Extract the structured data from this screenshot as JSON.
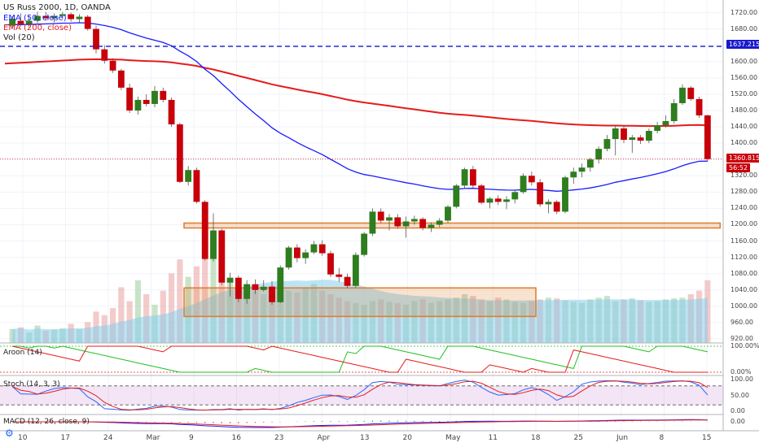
{
  "header": {
    "title": "US Russ 2000, 1D, OANDA",
    "ema50": "EMA (50, close)",
    "ema200": "EMA (200, close)",
    "volume": "Vol (20)"
  },
  "panes": {
    "aroon": "Aroon (14)",
    "stoch": "Stoch (14, 3, 3)",
    "macd": "MACD (12, 26, close, 9)"
  },
  "price_axis": [
    "1720.00",
    "1680.00",
    "1640.00",
    "1600.00",
    "1560.00",
    "1520.00",
    "1480.00",
    "1440.00",
    "1400.00",
    "1360.00",
    "1320.00",
    "1280.00",
    "1240.00",
    "1200.00",
    "1160.00",
    "1120.00",
    "1080.00",
    "1040.00",
    "1000.00",
    "960.00",
    "920.00"
  ],
  "aroon_axis": [
    "100.00%",
    "0.00%"
  ],
  "stoch_axis": [
    "100.00",
    "50.00",
    "0.00"
  ],
  "macd_axis": [
    "0.00"
  ],
  "time_axis": [
    "10",
    "17",
    "24",
    "Mar",
    "9",
    "16",
    "23",
    "Apr",
    "13",
    "20",
    "May",
    "11",
    "18",
    "25",
    "Jun",
    "8",
    "15"
  ],
  "tags": {
    "level": "1637.215",
    "last_price": "1360.815",
    "countdown": "56:52"
  },
  "colors": {
    "up": "#2e7d1e",
    "down": "#c8000a",
    "ema50": "#1a1aff",
    "ema200": "#e51c1c",
    "volume_area": "#87ceeb",
    "zone": "#e07b2a",
    "dash_level": "#1a1acc"
  },
  "chart_data": {
    "type": "candlestick",
    "title": "US Russ 2000, 1D, OANDA",
    "ylim": [
      910,
      1735
    ],
    "candles": [
      {
        "o": 1688,
        "h": 1712,
        "l": 1680,
        "c": 1705
      },
      {
        "o": 1700,
        "h": 1718,
        "l": 1686,
        "c": 1692
      },
      {
        "o": 1692,
        "h": 1710,
        "l": 1684,
        "c": 1700
      },
      {
        "o": 1700,
        "h": 1722,
        "l": 1694,
        "c": 1712
      },
      {
        "o": 1712,
        "h": 1722,
        "l": 1700,
        "c": 1706
      },
      {
        "o": 1706,
        "h": 1718,
        "l": 1696,
        "c": 1712
      },
      {
        "o": 1712,
        "h": 1722,
        "l": 1704,
        "c": 1716
      },
      {
        "o": 1716,
        "h": 1720,
        "l": 1698,
        "c": 1704
      },
      {
        "o": 1704,
        "h": 1716,
        "l": 1696,
        "c": 1710
      },
      {
        "o": 1710,
        "h": 1714,
        "l": 1676,
        "c": 1680
      },
      {
        "o": 1680,
        "h": 1688,
        "l": 1620,
        "c": 1630
      },
      {
        "o": 1630,
        "h": 1640,
        "l": 1595,
        "c": 1602
      },
      {
        "o": 1602,
        "h": 1608,
        "l": 1572,
        "c": 1578
      },
      {
        "o": 1578,
        "h": 1582,
        "l": 1530,
        "c": 1536
      },
      {
        "o": 1536,
        "h": 1546,
        "l": 1474,
        "c": 1480
      },
      {
        "o": 1480,
        "h": 1514,
        "l": 1470,
        "c": 1506
      },
      {
        "o": 1506,
        "h": 1520,
        "l": 1490,
        "c": 1496
      },
      {
        "o": 1496,
        "h": 1540,
        "l": 1488,
        "c": 1528
      },
      {
        "o": 1528,
        "h": 1536,
        "l": 1500,
        "c": 1506
      },
      {
        "o": 1506,
        "h": 1512,
        "l": 1440,
        "c": 1446
      },
      {
        "o": 1446,
        "h": 1450,
        "l": 1302,
        "c": 1305
      },
      {
        "o": 1305,
        "h": 1344,
        "l": 1296,
        "c": 1334
      },
      {
        "o": 1334,
        "h": 1340,
        "l": 1252,
        "c": 1256
      },
      {
        "o": 1256,
        "h": 1260,
        "l": 1112,
        "c": 1116
      },
      {
        "o": 1116,
        "h": 1228,
        "l": 1110,
        "c": 1186
      },
      {
        "o": 1186,
        "h": 1190,
        "l": 1052,
        "c": 1058
      },
      {
        "o": 1058,
        "h": 1082,
        "l": 1024,
        "c": 1070
      },
      {
        "o": 1070,
        "h": 1075,
        "l": 1010,
        "c": 1018
      },
      {
        "o": 1018,
        "h": 1064,
        "l": 1006,
        "c": 1054
      },
      {
        "o": 1054,
        "h": 1066,
        "l": 1030,
        "c": 1040
      },
      {
        "o": 1040,
        "h": 1064,
        "l": 1036,
        "c": 1048
      },
      {
        "o": 1048,
        "h": 1062,
        "l": 1004,
        "c": 1010
      },
      {
        "o": 1010,
        "h": 1100,
        "l": 1008,
        "c": 1095
      },
      {
        "o": 1095,
        "h": 1148,
        "l": 1090,
        "c": 1144
      },
      {
        "o": 1144,
        "h": 1152,
        "l": 1108,
        "c": 1118
      },
      {
        "o": 1118,
        "h": 1140,
        "l": 1104,
        "c": 1132
      },
      {
        "o": 1132,
        "h": 1160,
        "l": 1128,
        "c": 1152
      },
      {
        "o": 1152,
        "h": 1162,
        "l": 1124,
        "c": 1130
      },
      {
        "o": 1130,
        "h": 1136,
        "l": 1072,
        "c": 1078
      },
      {
        "o": 1078,
        "h": 1094,
        "l": 1060,
        "c": 1072
      },
      {
        "o": 1072,
        "h": 1080,
        "l": 1044,
        "c": 1050
      },
      {
        "o": 1050,
        "h": 1132,
        "l": 1046,
        "c": 1126
      },
      {
        "o": 1126,
        "h": 1182,
        "l": 1122,
        "c": 1178
      },
      {
        "o": 1178,
        "h": 1240,
        "l": 1172,
        "c": 1232
      },
      {
        "o": 1232,
        "h": 1240,
        "l": 1204,
        "c": 1210
      },
      {
        "o": 1210,
        "h": 1226,
        "l": 1186,
        "c": 1218
      },
      {
        "o": 1218,
        "h": 1226,
        "l": 1190,
        "c": 1196
      },
      {
        "o": 1196,
        "h": 1220,
        "l": 1168,
        "c": 1208
      },
      {
        "o": 1208,
        "h": 1222,
        "l": 1200,
        "c": 1214
      },
      {
        "o": 1214,
        "h": 1218,
        "l": 1186,
        "c": 1192
      },
      {
        "o": 1192,
        "h": 1206,
        "l": 1182,
        "c": 1200
      },
      {
        "o": 1200,
        "h": 1216,
        "l": 1194,
        "c": 1210
      },
      {
        "o": 1210,
        "h": 1248,
        "l": 1204,
        "c": 1244
      },
      {
        "o": 1244,
        "h": 1300,
        "l": 1240,
        "c": 1296
      },
      {
        "o": 1296,
        "h": 1340,
        "l": 1290,
        "c": 1336
      },
      {
        "o": 1336,
        "h": 1344,
        "l": 1290,
        "c": 1296
      },
      {
        "o": 1296,
        "h": 1300,
        "l": 1250,
        "c": 1254
      },
      {
        "o": 1254,
        "h": 1268,
        "l": 1240,
        "c": 1264
      },
      {
        "o": 1264,
        "h": 1272,
        "l": 1248,
        "c": 1256
      },
      {
        "o": 1256,
        "h": 1270,
        "l": 1238,
        "c": 1262
      },
      {
        "o": 1262,
        "h": 1286,
        "l": 1252,
        "c": 1280
      },
      {
        "o": 1280,
        "h": 1326,
        "l": 1276,
        "c": 1320
      },
      {
        "o": 1320,
        "h": 1330,
        "l": 1296,
        "c": 1304
      },
      {
        "o": 1304,
        "h": 1312,
        "l": 1244,
        "c": 1250
      },
      {
        "o": 1250,
        "h": 1262,
        "l": 1228,
        "c": 1256
      },
      {
        "o": 1256,
        "h": 1260,
        "l": 1226,
        "c": 1232
      },
      {
        "o": 1232,
        "h": 1320,
        "l": 1228,
        "c": 1316
      },
      {
        "o": 1316,
        "h": 1340,
        "l": 1300,
        "c": 1330
      },
      {
        "o": 1330,
        "h": 1350,
        "l": 1316,
        "c": 1340
      },
      {
        "o": 1340,
        "h": 1364,
        "l": 1330,
        "c": 1360
      },
      {
        "o": 1360,
        "h": 1392,
        "l": 1350,
        "c": 1386
      },
      {
        "o": 1386,
        "h": 1420,
        "l": 1380,
        "c": 1410
      },
      {
        "o": 1410,
        "h": 1444,
        "l": 1370,
        "c": 1436
      },
      {
        "o": 1436,
        "h": 1444,
        "l": 1400,
        "c": 1408
      },
      {
        "o": 1408,
        "h": 1420,
        "l": 1376,
        "c": 1414
      },
      {
        "o": 1414,
        "h": 1420,
        "l": 1398,
        "c": 1406
      },
      {
        "o": 1406,
        "h": 1436,
        "l": 1400,
        "c": 1430
      },
      {
        "o": 1430,
        "h": 1452,
        "l": 1424,
        "c": 1444
      },
      {
        "o": 1444,
        "h": 1468,
        "l": 1438,
        "c": 1454
      },
      {
        "o": 1454,
        "h": 1508,
        "l": 1448,
        "c": 1498
      },
      {
        "o": 1498,
        "h": 1544,
        "l": 1494,
        "c": 1536
      },
      {
        "o": 1536,
        "h": 1540,
        "l": 1504,
        "c": 1508
      },
      {
        "o": 1508,
        "h": 1514,
        "l": 1462,
        "c": 1468
      },
      {
        "o": 1468,
        "h": 1470,
        "l": 1356,
        "c": 1361
      }
    ],
    "volume": [
      40,
      45,
      30,
      50,
      35,
      38,
      42,
      55,
      40,
      60,
      90,
      80,
      100,
      160,
      120,
      180,
      140,
      110,
      150,
      200,
      240,
      190,
      220,
      250,
      260,
      230,
      180,
      160,
      170,
      150,
      140,
      165,
      155,
      150,
      145,
      160,
      170,
      150,
      140,
      130,
      120,
      115,
      110,
      120,
      125,
      118,
      115,
      110,
      120,
      125,
      115,
      120,
      125,
      130,
      140,
      135,
      125,
      120,
      130,
      125,
      118,
      115,
      120,
      125,
      130,
      128,
      122,
      118,
      115,
      125,
      130,
      135,
      120,
      125,
      128,
      122,
      118,
      120,
      125,
      128,
      130,
      140,
      150,
      180
    ],
    "volume_ylim": [
      0,
      280
    ],
    "overlays": [
      {
        "name": "EMA (50, close)",
        "color": "#1a1aff"
      },
      {
        "name": "EMA (200, close)",
        "color": "#e51c1c"
      }
    ],
    "levels": [
      1637.215,
      1360.815
    ],
    "zones": [
      {
        "from_bar": 21,
        "to_bar": 84,
        "low": 1192,
        "high": 1204
      },
      {
        "from_bar": 21,
        "to_bar": 62,
        "low": 975,
        "high": 1045
      }
    ],
    "indicators": [
      "Aroon (14)",
      "Stoch (14, 3, 3)",
      "MACD (12, 26, close, 9)"
    ]
  }
}
